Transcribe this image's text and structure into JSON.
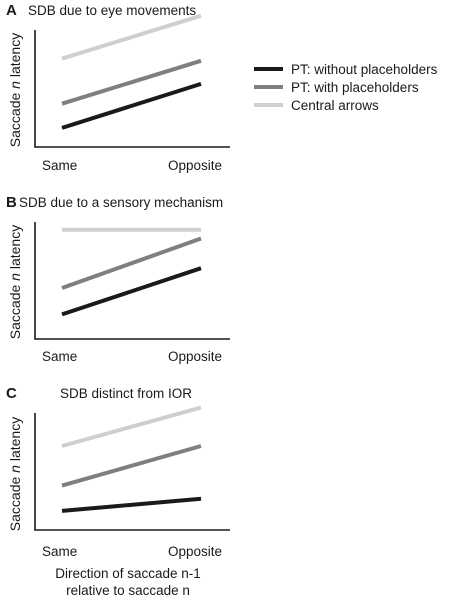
{
  "legend": [
    {
      "label": "PT: without placeholders",
      "color": "#1a1a1a"
    },
    {
      "label": "PT: with placeholders",
      "color": "#7f7f7f"
    },
    {
      "label": "Central arrows",
      "color": "#cfcfcf"
    }
  ],
  "xlabel_lines": [
    "Direction of saccade n-1",
    "relative to saccade n"
  ],
  "chart_data": [
    {
      "type": "line",
      "panel": "A",
      "title": "SDB due to eye movements",
      "ylabel_parts": [
        "Saccade ",
        "n",
        " latency"
      ],
      "categories": [
        "Same",
        "Opposite"
      ],
      "ylim": [
        0,
        10
      ],
      "series": [
        {
          "name": "PT: without placeholders",
          "values": [
            1.1,
            5.1
          ],
          "color": "#1a1a1a"
        },
        {
          "name": "PT: with placeholders",
          "values": [
            3.3,
            7.2
          ],
          "color": "#7f7f7f"
        },
        {
          "name": "Central arrows",
          "values": [
            7.4,
            11.3
          ],
          "color": "#cfcfcf"
        }
      ]
    },
    {
      "type": "line",
      "panel": "B",
      "title": "SDB due to a sensory mechanism",
      "ylabel_parts": [
        "Saccade ",
        "n",
        " latency"
      ],
      "categories": [
        "Same",
        "Opposite"
      ],
      "ylim": [
        0,
        10
      ],
      "series": [
        {
          "name": "PT: without placeholders",
          "values": [
            1.6,
            5.8
          ],
          "color": "#1a1a1a"
        },
        {
          "name": "PT: with placeholders",
          "values": [
            4.0,
            8.5
          ],
          "color": "#7f7f7f"
        },
        {
          "name": "Central arrows",
          "values": [
            9.3,
            9.3
          ],
          "color": "#cfcfcf"
        }
      ]
    },
    {
      "type": "line",
      "panel": "C",
      "title": "SDB distinct from IOR",
      "ylabel_parts": [
        "Saccade ",
        "n",
        " latency"
      ],
      "categories": [
        "Same",
        "Opposite"
      ],
      "ylim": [
        0,
        10
      ],
      "series": [
        {
          "name": "PT: without placeholders",
          "values": [
            1.1,
            2.2
          ],
          "color": "#1a1a1a"
        },
        {
          "name": "PT: with placeholders",
          "values": [
            3.4,
            7.0
          ],
          "color": "#7f7f7f"
        },
        {
          "name": "Central arrows",
          "values": [
            7.0,
            10.5
          ],
          "color": "#cfcfcf"
        }
      ]
    }
  ]
}
